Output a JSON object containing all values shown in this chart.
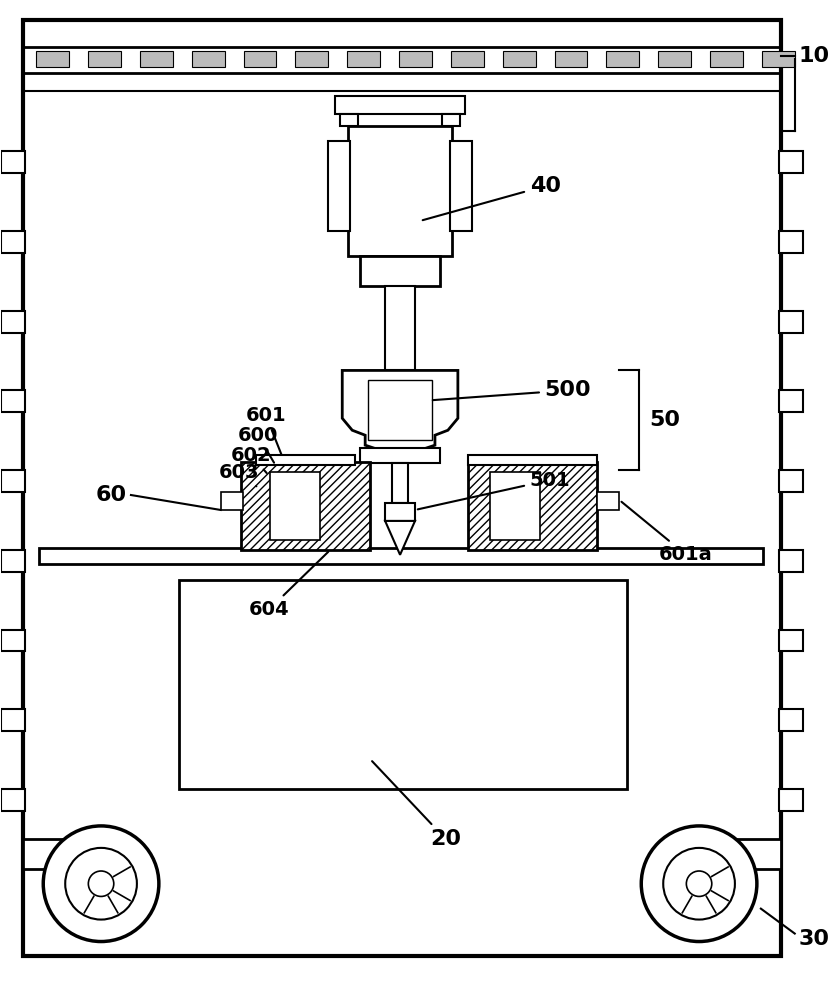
{
  "bg_color": "#ffffff",
  "line_color": "#000000",
  "fig_width": 8.38,
  "fig_height": 10.0
}
